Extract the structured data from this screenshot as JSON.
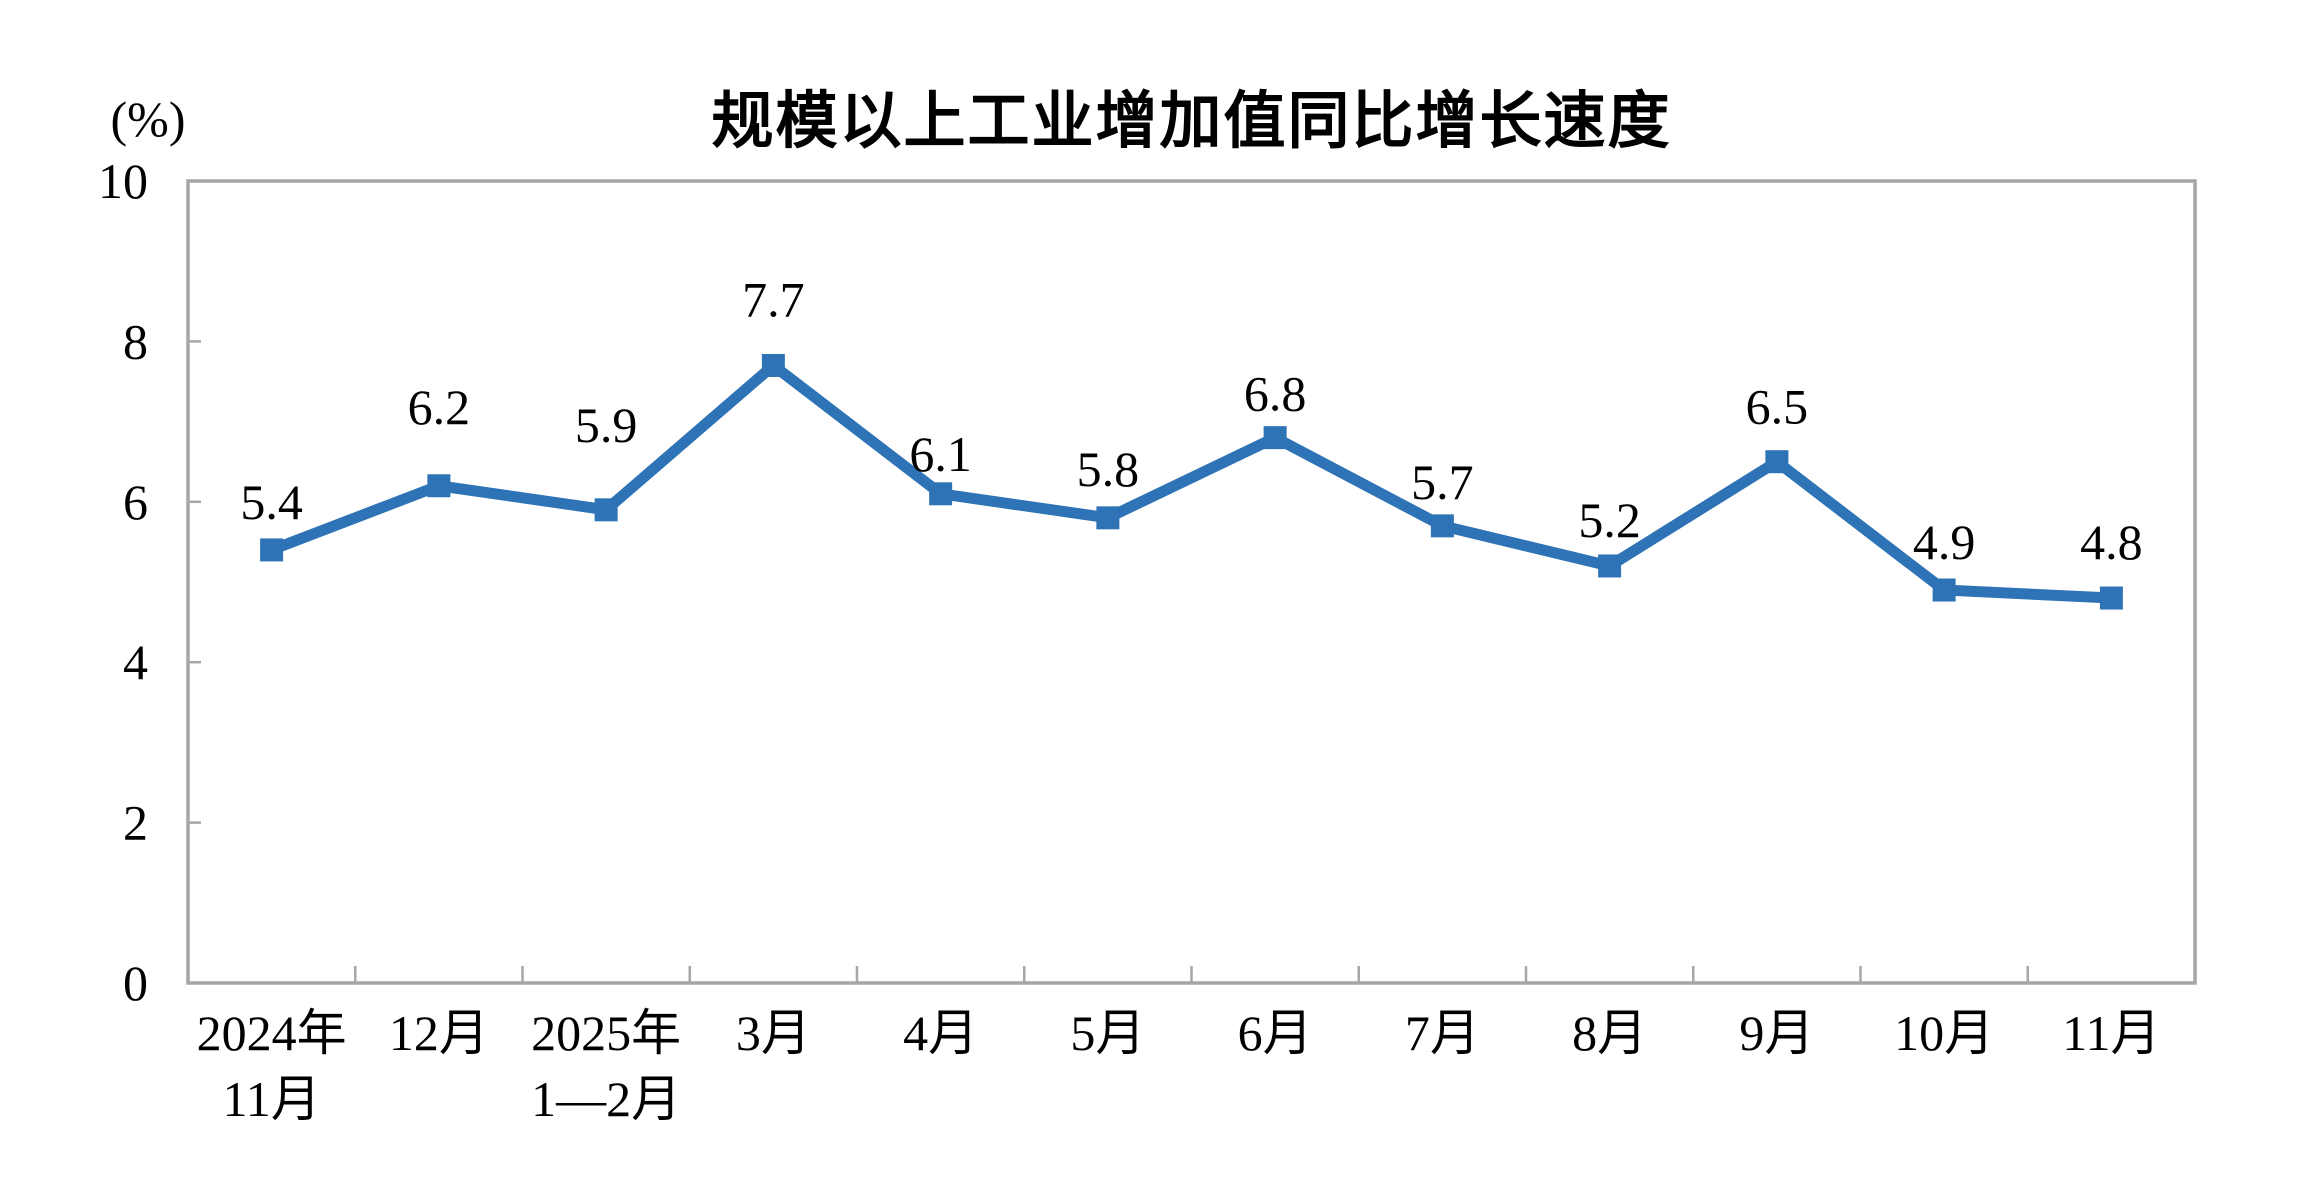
{
  "chart_data": {
    "type": "line",
    "title": "规模以上工业增加值同比增长速度",
    "y_unit_label": "(%)",
    "ylim": [
      0,
      10
    ],
    "yticks": [
      0,
      2,
      4,
      6,
      8,
      10
    ],
    "grid": false,
    "legend_position": "none",
    "series_name": "规模以上工业增加值同比增长速度",
    "series_color": "#2E73B5",
    "axis_color": "#A6A6A6",
    "categories": [
      [
        "2024年",
        "11月"
      ],
      [
        "12月"
      ],
      [
        "2025年",
        "1—2月"
      ],
      [
        "3月"
      ],
      [
        "4月"
      ],
      [
        "5月"
      ],
      [
        "6月"
      ],
      [
        "7月"
      ],
      [
        "8月"
      ],
      [
        "9月"
      ],
      [
        "10月"
      ],
      [
        "11月"
      ]
    ],
    "values": [
      5.4,
      6.2,
      5.9,
      7.7,
      6.1,
      5.8,
      6.8,
      5.7,
      5.2,
      6.5,
      4.9,
      4.8
    ],
    "data_labels": [
      "5.4",
      "6.2",
      "5.9",
      "7.7",
      "6.1",
      "5.8",
      "6.8",
      "5.7",
      "5.2",
      "6.5",
      "4.9",
      "4.8"
    ],
    "label_dy": [
      31,
      62,
      68,
      49,
      23,
      32,
      27,
      27,
      29,
      38,
      31,
      39
    ]
  }
}
